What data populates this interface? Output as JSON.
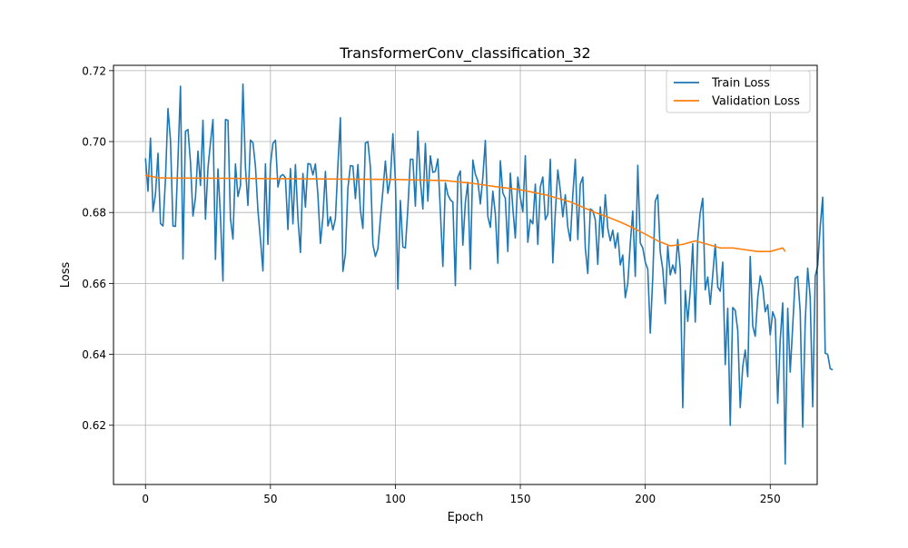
{
  "chart_data": {
    "type": "line",
    "title": "TransformerConv_classification_32",
    "xlabel": "Epoch",
    "ylabel": "Loss",
    "xlim": [
      -12.8,
      268.8
    ],
    "ylim": [
      0.6033,
      0.7215
    ],
    "x_ticks": [
      0,
      50,
      100,
      150,
      200,
      250
    ],
    "y_ticks": [
      0.62,
      0.64,
      0.66,
      0.68,
      0.7,
      0.72
    ],
    "grid": true,
    "legend_position": "top-right",
    "series": [
      {
        "name": "Train Loss",
        "color": "#1f77b4",
        "x_start": 0,
        "x_step": 1,
        "values": [
          0.6953,
          0.686,
          0.701,
          0.6803,
          0.6852,
          0.6967,
          0.6769,
          0.6762,
          0.6895,
          0.7093,
          0.7004,
          0.6762,
          0.6761,
          0.6949,
          0.7156,
          0.6669,
          0.7029,
          0.7034,
          0.6942,
          0.679,
          0.6842,
          0.6973,
          0.6876,
          0.706,
          0.6781,
          0.6925,
          0.6996,
          0.7062,
          0.6668,
          0.6923,
          0.6789,
          0.6607,
          0.7062,
          0.706,
          0.6783,
          0.6725,
          0.6937,
          0.6845,
          0.6876,
          0.7162,
          0.6927,
          0.682,
          0.7004,
          0.6997,
          0.6931,
          0.6806,
          0.6724,
          0.6635,
          0.6937,
          0.671,
          0.6935,
          0.6995,
          0.7004,
          0.6872,
          0.6902,
          0.6907,
          0.6898,
          0.6752,
          0.6924,
          0.6768,
          0.6935,
          0.6785,
          0.6687,
          0.691,
          0.6815,
          0.6938,
          0.6936,
          0.6906,
          0.6937,
          0.685,
          0.6713,
          0.6787,
          0.6916,
          0.6762,
          0.6788,
          0.6751,
          0.6782,
          0.6933,
          0.7067,
          0.6634,
          0.6683,
          0.6869,
          0.6932,
          0.6931,
          0.6839,
          0.6935,
          0.6807,
          0.6755,
          0.6996,
          0.7,
          0.6927,
          0.671,
          0.6676,
          0.6698,
          0.6782,
          0.6861,
          0.6945,
          0.6854,
          0.6896,
          0.7022,
          0.6891,
          0.6584,
          0.6834,
          0.6703,
          0.67,
          0.6812,
          0.695,
          0.695,
          0.6818,
          0.7029,
          0.689,
          0.681,
          0.6995,
          0.6832,
          0.696,
          0.6913,
          0.6916,
          0.6951,
          0.6804,
          0.6648,
          0.6884,
          0.685,
          0.6836,
          0.6829,
          0.6594,
          0.69,
          0.6917,
          0.6708,
          0.6828,
          0.6885,
          0.664,
          0.6948,
          0.6908,
          0.6889,
          0.6824,
          0.69,
          0.7003,
          0.6789,
          0.6758,
          0.686,
          0.6796,
          0.6657,
          0.6946,
          0.6855,
          0.684,
          0.669,
          0.6911,
          0.6812,
          0.6728,
          0.69,
          0.6843,
          0.6802,
          0.696,
          0.6716,
          0.678,
          0.6768,
          0.688,
          0.671,
          0.6872,
          0.69,
          0.678,
          0.6795,
          0.695,
          0.6658,
          0.68,
          0.692,
          0.6863,
          0.6788,
          0.685,
          0.6759,
          0.672,
          0.685,
          0.695,
          0.6724,
          0.688,
          0.69,
          0.67,
          0.6628,
          0.681,
          0.6805,
          0.678,
          0.6654,
          0.6816,
          0.673,
          0.685,
          0.6755,
          0.672,
          0.675,
          0.67,
          0.6742,
          0.6652,
          0.668,
          0.656,
          0.66,
          0.6712,
          0.6804,
          0.662,
          0.6933,
          0.6714,
          0.67,
          0.666,
          0.664,
          0.646,
          0.6618,
          0.6832,
          0.685,
          0.6688,
          0.664,
          0.6543,
          0.6705,
          0.6624,
          0.6652,
          0.6628,
          0.6724,
          0.664,
          0.625,
          0.658,
          0.6493,
          0.658,
          0.6712,
          0.6491,
          0.6724,
          0.68,
          0.684,
          0.6582,
          0.6618,
          0.6541,
          0.6624,
          0.671,
          0.659,
          0.6578,
          0.666,
          0.6371,
          0.653,
          0.62,
          0.6532,
          0.6524,
          0.6468,
          0.625,
          0.6365,
          0.6412,
          0.6337,
          0.6676,
          0.648,
          0.6451,
          0.656,
          0.6621,
          0.659,
          0.652,
          0.654,
          0.6455,
          0.652,
          0.65,
          0.6262,
          0.644,
          0.6545,
          0.6091,
          0.653,
          0.635,
          0.648,
          0.6614,
          0.662,
          0.652,
          0.6195,
          0.649,
          0.6643,
          0.656,
          0.6252,
          0.662,
          0.665,
          0.676,
          0.6843,
          0.6403,
          0.64,
          0.636,
          0.6356
        ]
      },
      {
        "name": "Validation Loss",
        "color": "#ff7f0e",
        "x": [
          0,
          5,
          10,
          20,
          40,
          60,
          80,
          100,
          120,
          130,
          140,
          150,
          160,
          170,
          175,
          180,
          185,
          190,
          195,
          200,
          205,
          210,
          215,
          220,
          225,
          230,
          235,
          240,
          245,
          250,
          255,
          256
        ],
        "values": [
          0.6905,
          0.6898,
          0.6897,
          0.6897,
          0.6896,
          0.6895,
          0.6894,
          0.6893,
          0.689,
          0.6883,
          0.6873,
          0.6864,
          0.685,
          0.683,
          0.6815,
          0.68,
          0.6787,
          0.6773,
          0.6757,
          0.6739,
          0.672,
          0.6706,
          0.671,
          0.672,
          0.671,
          0.67,
          0.67,
          0.6695,
          0.669,
          0.669,
          0.67,
          0.669
        ]
      }
    ]
  }
}
